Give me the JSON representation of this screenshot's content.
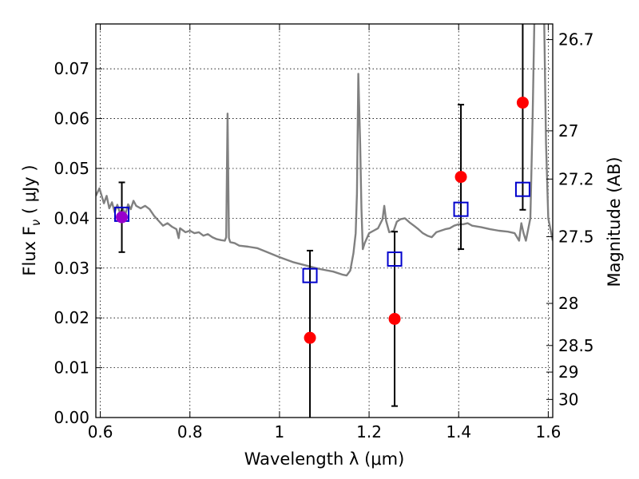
{
  "chart_data": {
    "type": "scatter",
    "xlabel": "Wavelength  λ (μm)",
    "ylabel": "Flux  F",
    "ylabel_sub": "ν",
    "ylabel_unit": "  ( μJy )",
    "y2label": "Magnitude (AB)",
    "xlim": [
      0.59,
      1.61
    ],
    "ylim": [
      0.0,
      0.079
    ],
    "grid": true,
    "x_ticks": [
      {
        "v": 0.6,
        "label": "0.6"
      },
      {
        "v": 0.8,
        "label": "0.8"
      },
      {
        "v": 1.0,
        "label": "1"
      },
      {
        "v": 1.2,
        "label": "1.2"
      },
      {
        "v": 1.4,
        "label": "1.4"
      },
      {
        "v": 1.6,
        "label": "1.6"
      }
    ],
    "y_ticks": [
      {
        "v": 0.0,
        "label": "0.00"
      },
      {
        "v": 0.01,
        "label": "0.01"
      },
      {
        "v": 0.02,
        "label": "0.02"
      },
      {
        "v": 0.03,
        "label": "0.03"
      },
      {
        "v": 0.04,
        "label": "0.04"
      },
      {
        "v": 0.05,
        "label": "0.05"
      },
      {
        "v": 0.06,
        "label": "0.06"
      },
      {
        "v": 0.07,
        "label": "0.07"
      }
    ],
    "y2_ticks": [
      {
        "mag": 26.7,
        "label": "26.7"
      },
      {
        "mag": 27.0,
        "label": "27"
      },
      {
        "mag": 27.2,
        "label": "27.2"
      },
      {
        "mag": 27.5,
        "label": "27.5"
      },
      {
        "mag": 28.0,
        "label": "28"
      },
      {
        "mag": 28.5,
        "label": "28.5"
      },
      {
        "mag": 29.0,
        "label": "29"
      },
      {
        "mag": 30.0,
        "label": "30"
      }
    ],
    "template_color": "#808080",
    "template_spectrum": [
      [
        0.59,
        0.0445
      ],
      [
        0.598,
        0.046
      ],
      [
        0.603,
        0.0445
      ],
      [
        0.608,
        0.043
      ],
      [
        0.614,
        0.0445
      ],
      [
        0.62,
        0.042
      ],
      [
        0.626,
        0.0432
      ],
      [
        0.632,
        0.0412
      ],
      [
        0.638,
        0.0427
      ],
      [
        0.644,
        0.041
      ],
      [
        0.65,
        0.042
      ],
      [
        0.656,
        0.0408
      ],
      [
        0.662,
        0.0428
      ],
      [
        0.668,
        0.0418
      ],
      [
        0.674,
        0.0435
      ],
      [
        0.68,
        0.0425
      ],
      [
        0.69,
        0.042
      ],
      [
        0.7,
        0.0425
      ],
      [
        0.71,
        0.0418
      ],
      [
        0.72,
        0.0405
      ],
      [
        0.73,
        0.0395
      ],
      [
        0.74,
        0.0385
      ],
      [
        0.75,
        0.039
      ],
      [
        0.76,
        0.0383
      ],
      [
        0.77,
        0.0378
      ],
      [
        0.775,
        0.036
      ],
      [
        0.778,
        0.038
      ],
      [
        0.79,
        0.0372
      ],
      [
        0.8,
        0.0375
      ],
      [
        0.81,
        0.037
      ],
      [
        0.82,
        0.0372
      ],
      [
        0.83,
        0.0365
      ],
      [
        0.84,
        0.0368
      ],
      [
        0.85,
        0.0362
      ],
      [
        0.86,
        0.0358
      ],
      [
        0.87,
        0.0356
      ],
      [
        0.878,
        0.0355
      ],
      [
        0.881,
        0.0362
      ],
      [
        0.884,
        0.061
      ],
      [
        0.887,
        0.036
      ],
      [
        0.89,
        0.0352
      ],
      [
        0.9,
        0.035
      ],
      [
        0.91,
        0.0345
      ],
      [
        0.93,
        0.0343
      ],
      [
        0.95,
        0.034
      ],
      [
        0.97,
        0.0333
      ],
      [
        1.0,
        0.0322
      ],
      [
        1.03,
        0.0312
      ],
      [
        1.06,
        0.0305
      ],
      [
        1.09,
        0.0298
      ],
      [
        1.12,
        0.0293
      ],
      [
        1.14,
        0.0287
      ],
      [
        1.15,
        0.0285
      ],
      [
        1.158,
        0.0295
      ],
      [
        1.165,
        0.033
      ],
      [
        1.17,
        0.037
      ],
      [
        1.173,
        0.045
      ],
      [
        1.176,
        0.069
      ],
      [
        1.18,
        0.055
      ],
      [
        1.183,
        0.042
      ],
      [
        1.186,
        0.0338
      ],
      [
        1.19,
        0.035
      ],
      [
        1.2,
        0.037
      ],
      [
        1.21,
        0.0375
      ],
      [
        1.22,
        0.038
      ],
      [
        1.23,
        0.0398
      ],
      [
        1.234,
        0.0425
      ],
      [
        1.238,
        0.0395
      ],
      [
        1.245,
        0.0372
      ],
      [
        1.255,
        0.0375
      ],
      [
        1.262,
        0.0393
      ],
      [
        1.27,
        0.0398
      ],
      [
        1.28,
        0.04
      ],
      [
        1.29,
        0.0392
      ],
      [
        1.3,
        0.0385
      ],
      [
        1.31,
        0.0378
      ],
      [
        1.32,
        0.037
      ],
      [
        1.33,
        0.0365
      ],
      [
        1.34,
        0.0362
      ],
      [
        1.35,
        0.0372
      ],
      [
        1.36,
        0.0375
      ],
      [
        1.37,
        0.0378
      ],
      [
        1.38,
        0.038
      ],
      [
        1.39,
        0.0385
      ],
      [
        1.4,
        0.0388
      ],
      [
        1.41,
        0.0388
      ],
      [
        1.42,
        0.039
      ],
      [
        1.43,
        0.0385
      ],
      [
        1.45,
        0.0382
      ],
      [
        1.47,
        0.0378
      ],
      [
        1.49,
        0.0375
      ],
      [
        1.51,
        0.0373
      ],
      [
        1.525,
        0.037
      ],
      [
        1.535,
        0.0355
      ],
      [
        1.54,
        0.039
      ],
      [
        1.545,
        0.037
      ],
      [
        1.55,
        0.0355
      ],
      [
        1.56,
        0.04
      ],
      [
        1.565,
        0.06
      ],
      [
        1.57,
        0.085
      ],
      [
        1.59,
        0.085
      ],
      [
        1.595,
        0.055
      ],
      [
        1.6,
        0.04
      ],
      [
        1.61,
        0.0355
      ]
    ],
    "model_points": [
      {
        "x": 0.648,
        "y": 0.0408
      },
      {
        "x": 1.068,
        "y": 0.0285
      },
      {
        "x": 1.257,
        "y": 0.0318
      },
      {
        "x": 1.405,
        "y": 0.0418
      },
      {
        "x": 1.543,
        "y": 0.0458
      }
    ],
    "model_color": "#0000cc",
    "observed_points": [
      {
        "x": 0.648,
        "y": 0.0402,
        "yerr": 0.007,
        "color": "#9900cc"
      },
      {
        "x": 1.068,
        "y": 0.016,
        "yerr": 0.0175,
        "color": "#ff0000"
      },
      {
        "x": 1.257,
        "y": 0.0198,
        "yerr": 0.0175,
        "color": "#ff0000"
      },
      {
        "x": 1.405,
        "y": 0.0483,
        "yerr": 0.0145,
        "color": "#ff0000"
      },
      {
        "x": 1.543,
        "y": 0.0632,
        "yerr": 0.0215,
        "color": "#ff0000"
      }
    ]
  }
}
